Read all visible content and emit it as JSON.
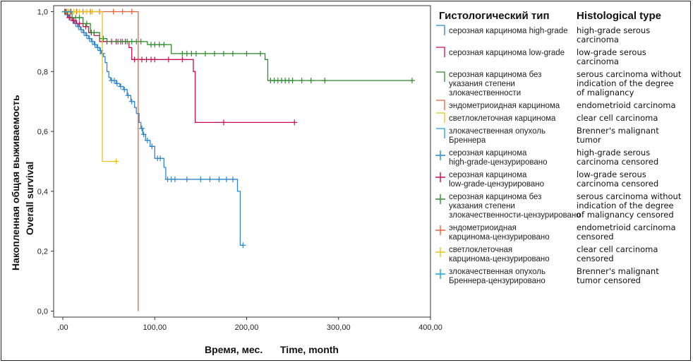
{
  "chart_data": {
    "type": "line",
    "subtype": "kaplan-meier",
    "title": "",
    "xlabel_ru": "Время, мес.",
    "xlabel_en": "Time, month",
    "ylabel_ru": "Накопленная общая выживаемость",
    "ylabel_en": "Overall survival",
    "xlim": [
      -10,
      400
    ],
    "ylim": [
      -0.02,
      1.02
    ],
    "x_ticks": [
      0,
      100,
      200,
      300,
      400
    ],
    "x_tick_labels": [
      ",00",
      "100,00",
      "200,00",
      "300,00",
      "400,00"
    ],
    "y_ticks": [
      0,
      0.2,
      0.4,
      0.6,
      0.8,
      1.0
    ],
    "y_tick_labels": [
      "0,0",
      "0,2",
      "0,4",
      "0,6",
      "0,8",
      "1,0"
    ],
    "grid": false,
    "legend_placement": "right",
    "legend_title_ru": "Гистологический тип",
    "legend_title_en": "Histological type",
    "series": [
      {
        "name": "серозная карцинома high-grade",
        "name_en": "high-grade serous carcinoma",
        "censored_label": "серозная карцинома high-grade-цензурировано",
        "censored_label_en": "high-grade serous carcinoma censored",
        "color": "#2f86c8",
        "steps": [
          [
            0,
            1.0
          ],
          [
            3,
            0.99
          ],
          [
            6,
            0.98
          ],
          [
            10,
            0.97
          ],
          [
            13,
            0.96
          ],
          [
            16,
            0.95
          ],
          [
            19,
            0.94
          ],
          [
            22,
            0.93
          ],
          [
            25,
            0.92
          ],
          [
            28,
            0.91
          ],
          [
            31,
            0.9
          ],
          [
            34,
            0.89
          ],
          [
            37,
            0.88
          ],
          [
            40,
            0.87
          ],
          [
            42,
            0.86
          ],
          [
            44,
            0.85
          ],
          [
            46,
            0.83
          ],
          [
            48,
            0.8
          ],
          [
            50,
            0.78
          ],
          [
            52,
            0.77
          ],
          [
            58,
            0.76
          ],
          [
            62,
            0.75
          ],
          [
            66,
            0.74
          ],
          [
            70,
            0.72
          ],
          [
            74,
            0.7
          ],
          [
            78,
            0.68
          ],
          [
            80,
            0.66
          ],
          [
            83,
            0.63
          ],
          [
            85,
            0.61
          ],
          [
            87,
            0.59
          ],
          [
            90,
            0.57
          ],
          [
            95,
            0.55
          ],
          [
            100,
            0.51
          ],
          [
            110,
            0.48
          ],
          [
            112,
            0.44
          ],
          [
            190,
            0.4
          ],
          [
            193,
            0.22
          ]
        ],
        "end_x": 196,
        "censored": [
          [
            2,
            1.0
          ],
          [
            5,
            0.99
          ],
          [
            8,
            0.98
          ],
          [
            11,
            0.97
          ],
          [
            14,
            0.96
          ],
          [
            17,
            0.95
          ],
          [
            20,
            0.94
          ],
          [
            23,
            0.93
          ],
          [
            26,
            0.92
          ],
          [
            29,
            0.91
          ],
          [
            32,
            0.9
          ],
          [
            35,
            0.89
          ],
          [
            38,
            0.88
          ],
          [
            41,
            0.87
          ],
          [
            43,
            0.86
          ],
          [
            53,
            0.77
          ],
          [
            56,
            0.77
          ],
          [
            59,
            0.76
          ],
          [
            63,
            0.75
          ],
          [
            67,
            0.74
          ],
          [
            71,
            0.72
          ],
          [
            75,
            0.7
          ],
          [
            86,
            0.61
          ],
          [
            88,
            0.59
          ],
          [
            92,
            0.57
          ],
          [
            97,
            0.55
          ],
          [
            103,
            0.51
          ],
          [
            106,
            0.51
          ],
          [
            114,
            0.44
          ],
          [
            118,
            0.44
          ],
          [
            122,
            0.44
          ],
          [
            135,
            0.44
          ],
          [
            150,
            0.44
          ],
          [
            160,
            0.44
          ],
          [
            170,
            0.44
          ],
          [
            178,
            0.44
          ],
          [
            185,
            0.44
          ],
          [
            196,
            0.22
          ]
        ]
      },
      {
        "name": "серозная карцинома low-grade",
        "name_en": "low-grade serous carcinoma",
        "censored_label": "серозная карцинома low-grade-цензурировано",
        "censored_label_en": "low-grade serous carcinoma censored",
        "color": "#c8104e",
        "steps": [
          [
            0,
            1.0
          ],
          [
            5,
            0.98
          ],
          [
            10,
            0.97
          ],
          [
            15,
            0.96
          ],
          [
            22,
            0.95
          ],
          [
            28,
            0.93
          ],
          [
            34,
            0.92
          ],
          [
            40,
            0.9
          ],
          [
            72,
            0.88
          ],
          [
            75,
            0.84
          ],
          [
            142,
            0.8
          ],
          [
            144,
            0.63
          ]
        ],
        "end_x": 252,
        "censored": [
          [
            3,
            1.0
          ],
          [
            7,
            0.98
          ],
          [
            12,
            0.97
          ],
          [
            18,
            0.96
          ],
          [
            25,
            0.95
          ],
          [
            31,
            0.93
          ],
          [
            43,
            0.9
          ],
          [
            48,
            0.9
          ],
          [
            53,
            0.9
          ],
          [
            58,
            0.9
          ],
          [
            63,
            0.9
          ],
          [
            68,
            0.9
          ],
          [
            78,
            0.84
          ],
          [
            82,
            0.84
          ],
          [
            86,
            0.84
          ],
          [
            91,
            0.84
          ],
          [
            96,
            0.84
          ],
          [
            100,
            0.84
          ],
          [
            115,
            0.84
          ],
          [
            130,
            0.84
          ],
          [
            175,
            0.63
          ],
          [
            252,
            0.63
          ]
        ]
      },
      {
        "name": "серозная карцинома без указания степени злокачественности",
        "name_en": "serous carcinoma without indication of the degree of malignancy",
        "censored_label": "серозная карцинома без указания степени злокачественности-цензурировано",
        "censored_label_en": "serous carcinoma without indication of the degree of malignancy censored",
        "color": "#2e8b2e",
        "steps": [
          [
            0,
            1.0
          ],
          [
            10,
            0.98
          ],
          [
            22,
            0.96
          ],
          [
            30,
            0.93
          ],
          [
            40,
            0.91
          ],
          [
            48,
            0.9
          ],
          [
            92,
            0.89
          ],
          [
            118,
            0.86
          ],
          [
            220,
            0.84
          ],
          [
            223,
            0.77
          ]
        ],
        "end_x": 380,
        "censored": [
          [
            2,
            1.0
          ],
          [
            6,
            1.0
          ],
          [
            14,
            0.98
          ],
          [
            18,
            0.98
          ],
          [
            26,
            0.96
          ],
          [
            34,
            0.93
          ],
          [
            44,
            0.91
          ],
          [
            60,
            0.9
          ],
          [
            65,
            0.9
          ],
          [
            70,
            0.9
          ],
          [
            75,
            0.9
          ],
          [
            80,
            0.9
          ],
          [
            85,
            0.9
          ],
          [
            96,
            0.89
          ],
          [
            100,
            0.89
          ],
          [
            105,
            0.89
          ],
          [
            110,
            0.89
          ],
          [
            130,
            0.86
          ],
          [
            135,
            0.86
          ],
          [
            140,
            0.86
          ],
          [
            145,
            0.86
          ],
          [
            155,
            0.86
          ],
          [
            165,
            0.86
          ],
          [
            175,
            0.86
          ],
          [
            185,
            0.86
          ],
          [
            200,
            0.86
          ],
          [
            215,
            0.86
          ],
          [
            226,
            0.77
          ],
          [
            230,
            0.77
          ],
          [
            234,
            0.77
          ],
          [
            238,
            0.77
          ],
          [
            242,
            0.77
          ],
          [
            246,
            0.77
          ],
          [
            250,
            0.77
          ],
          [
            260,
            0.77
          ],
          [
            270,
            0.77
          ],
          [
            285,
            0.77
          ],
          [
            380,
            0.77
          ]
        ]
      },
      {
        "name": "эндометриоидная карцинома",
        "name_en": "endometrioid carcinoma",
        "censored_label": "эндометриоидная карцинома-цензурировано",
        "censored_label_en": "endometrioid carcinoma censored",
        "color": "#e8633a",
        "steps": [
          [
            0,
            1.0
          ],
          [
            82,
            0.0
          ]
        ],
        "end_x": 82,
        "censored": [
          [
            4,
            1.0
          ],
          [
            9,
            1.0
          ],
          [
            15,
            1.0
          ],
          [
            22,
            1.0
          ],
          [
            30,
            1.0
          ],
          [
            40,
            1.0
          ],
          [
            55,
            1.0
          ],
          [
            65,
            1.0
          ],
          [
            75,
            1.0
          ]
        ]
      },
      {
        "name": "светлоклеточная карцинома",
        "name_en": "clear cell carcinoma",
        "censored_label": "светлоклеточная карцинома-цензурировано",
        "censored_label_en": "clear cell carcinoma censored",
        "color": "#e8c21a",
        "steps": [
          [
            0,
            1.0
          ],
          [
            43,
            0.5
          ]
        ],
        "end_x": 58,
        "censored": [
          [
            6,
            1.0
          ],
          [
            12,
            1.0
          ],
          [
            18,
            1.0
          ],
          [
            26,
            1.0
          ],
          [
            32,
            1.0
          ],
          [
            58,
            0.5
          ]
        ]
      },
      {
        "name": "злокачественная опухоль Бреннера",
        "name_en": "Brenner's malignant tumor",
        "censored_label": "злокачественная опухоль Бреннера-цензурировано",
        "censored_label_en": "Brenner's malignant tumor censored",
        "color": "#1aa3d6",
        "steps": [
          [
            0,
            1.0
          ]
        ],
        "end_x": 8,
        "censored": [
          [
            8,
            1.0
          ]
        ]
      }
    ]
  }
}
